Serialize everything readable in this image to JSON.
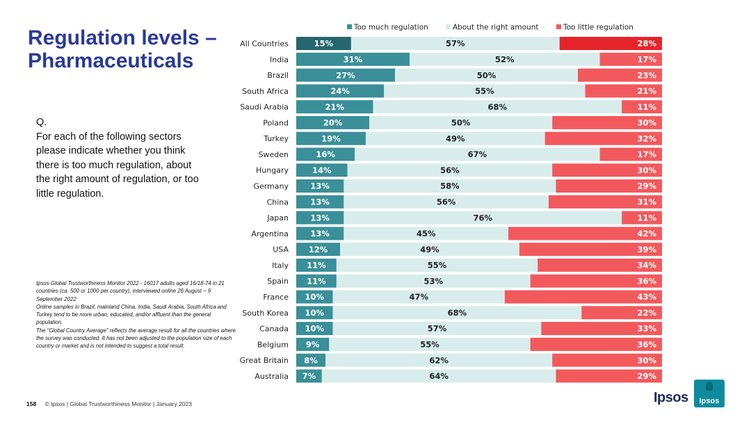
{
  "title": "Regulation levels – Pharmaceuticals",
  "question": {
    "prefix": "Q.",
    "text": "For each of the following sectors please indicate whether you think there is too much regulation, about the right amount of regulation, or too little regulation."
  },
  "methodology": [
    "Ipsos Global Trustworthiness Monitor 2022 - 16017 adults aged 16/18-74 in 21 countries (ca. 500 or 1000 per country), interviewed online 26 August – 9 September 2022",
    "Online samples in Brazil, mainland China, India, Saudi Arabia, South Africa and Turkey tend to be more urban, educated, and/or affluent than the general population.",
    "The “Global Country Average” reflects the average result for all the countries where the survey was conducted. It has not been adjusted to the population size of each country or market and is not intended to suggest a total result."
  ],
  "footer": {
    "page_number": "158",
    "text": "© Ipsos | Global Trustworthiness Monitor | January 2023"
  },
  "logo": {
    "wordmark": "Ipsos",
    "badge": "Ipsos"
  },
  "colors": {
    "too_much": "#3a8f98",
    "too_much_highlight": "#26666f",
    "about_right": "#d9ecec",
    "too_little": "#f2595d",
    "too_little_highlight": "#e5252b",
    "title": "#2a3a97"
  },
  "chart_data": {
    "type": "bar",
    "orientation": "horizontal",
    "stacked": "100%",
    "categories": [
      "All Countries",
      "India",
      "Brazil",
      "South Africa",
      "Saudi Arabia",
      "Poland",
      "Turkey",
      "Sweden",
      "Hungary",
      "Germany",
      "China",
      "Japan",
      "Argentina",
      "USA",
      "Italy",
      "Spain",
      "France",
      "South Korea",
      "Canada",
      "Belgium",
      "Great Britain",
      "Australia"
    ],
    "series": [
      {
        "name": "Too much regulation",
        "values": [
          15,
          31,
          27,
          24,
          21,
          20,
          19,
          16,
          14,
          13,
          13,
          13,
          13,
          12,
          11,
          11,
          10,
          10,
          10,
          9,
          8,
          7
        ]
      },
      {
        "name": "About the right amount",
        "values": [
          57,
          52,
          50,
          55,
          68,
          50,
          49,
          67,
          56,
          58,
          56,
          76,
          45,
          49,
          55,
          53,
          47,
          68,
          57,
          55,
          62,
          64
        ]
      },
      {
        "name": "Too little regulation",
        "values": [
          28,
          17,
          23,
          21,
          11,
          30,
          32,
          17,
          30,
          29,
          31,
          11,
          42,
          39,
          34,
          36,
          43,
          22,
          33,
          36,
          30,
          29
        ]
      }
    ],
    "value_suffix": "%",
    "legend_position": "top",
    "highlight_category": "All Countries"
  }
}
